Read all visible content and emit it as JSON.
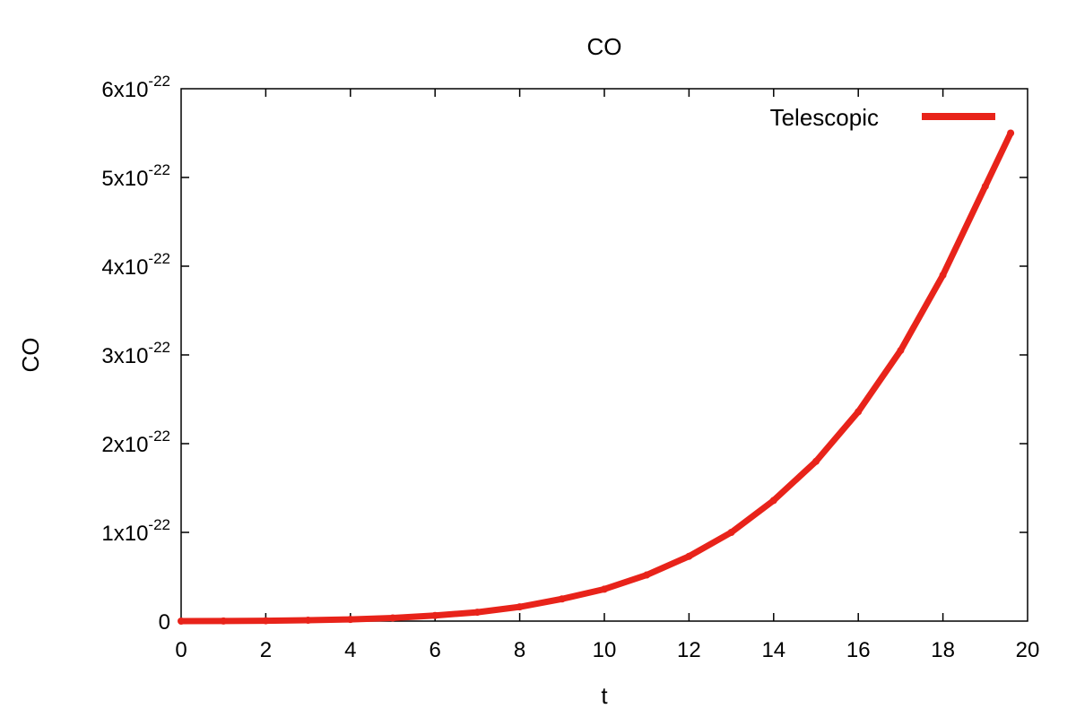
{
  "chart_data": {
    "type": "line",
    "title": "CO",
    "xlabel": "t",
    "ylabel": "CO",
    "xlim": [
      0,
      20
    ],
    "ylim": [
      0,
      6e-22
    ],
    "x_ticks": [
      "0",
      "2",
      "4",
      "6",
      "8",
      "10",
      "12",
      "14",
      "16",
      "18",
      "20"
    ],
    "y_ticks": [
      {
        "mantissa": "0",
        "base": "",
        "exponent": ""
      },
      {
        "mantissa": "1",
        "base": "x10",
        "exponent": "-22"
      },
      {
        "mantissa": "2",
        "base": "x10",
        "exponent": "-22"
      },
      {
        "mantissa": "3",
        "base": "x10",
        "exponent": "-22"
      },
      {
        "mantissa": "4",
        "base": "x10",
        "exponent": "-22"
      },
      {
        "mantissa": "5",
        "base": "x10",
        "exponent": "-22"
      },
      {
        "mantissa": "6",
        "base": "x10",
        "exponent": "-22"
      }
    ],
    "grid": false,
    "legend_position": "top-right",
    "series": [
      {
        "name": "Telescopic",
        "color": "#e8231a",
        "x": [
          0,
          1,
          2,
          3,
          4,
          5,
          6,
          7,
          8,
          9,
          10,
          11,
          12,
          13,
          14,
          15,
          16,
          17,
          18,
          19,
          19.6
        ],
        "y": [
          0,
          1e-25,
          4e-25,
          1e-24,
          1.9e-24,
          3.5e-24,
          6.3e-24,
          1e-23,
          1.6e-23,
          2.5e-23,
          3.6e-23,
          5.2e-23,
          7.3e-23,
          1e-22,
          1.36e-22,
          1.8e-22,
          2.36e-22,
          3.05e-22,
          3.9e-22,
          4.9e-22,
          5.5e-22
        ]
      }
    ]
  }
}
